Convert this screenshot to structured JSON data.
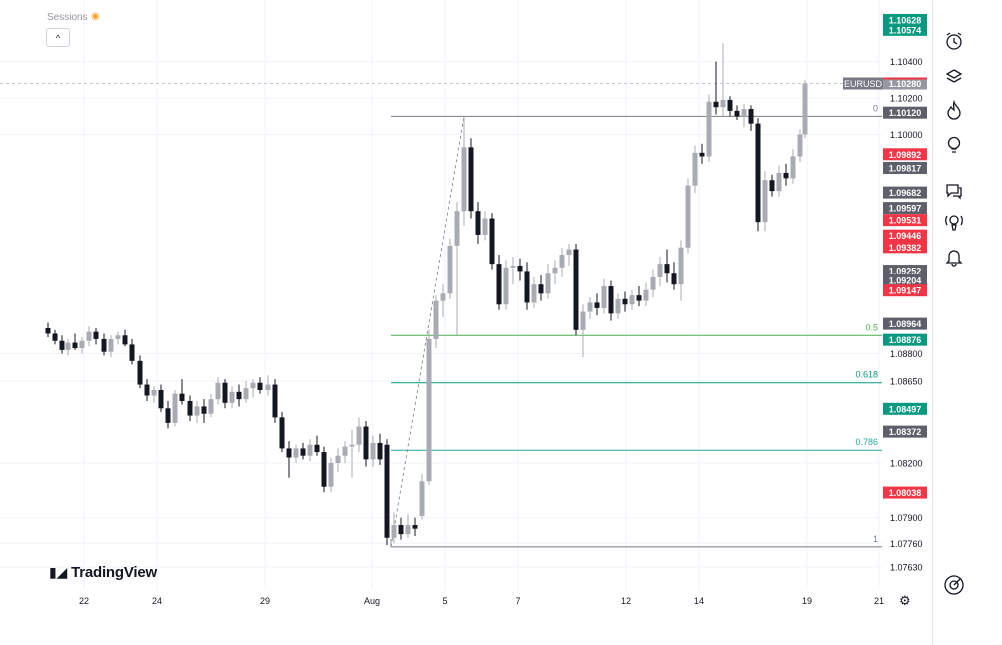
{
  "header": {
    "sessions_label": "Sessions"
  },
  "brand": {
    "name": "TradingView"
  },
  "symbol": {
    "ticker": "EURUSD",
    "price": "1.10280"
  },
  "colors": {
    "up": "#a8abb3",
    "down": "#131722",
    "green": "#089981",
    "red": "#f23645",
    "gray": "#5d606b",
    "fib": "#26a69a"
  },
  "toolbar": {
    "icons": [
      "alarm-clock-icon",
      "layers-icon",
      "hotlist-flame-icon",
      "ideas-bulb-icon",
      "chat-icon",
      "broadcast-icon",
      "bell-icon",
      "target-icon"
    ]
  },
  "chart_data": {
    "type": "candlestick",
    "instrument": "EURUSD",
    "x_ticks": [
      "22",
      "24",
      "29",
      "Aug",
      "5",
      "7",
      "12",
      "14",
      "19",
      "21"
    ],
    "y_ticks": [
      "1.10400",
      "1.10200",
      "1.10000",
      "1.08800",
      "1.08650",
      "1.08200",
      "1.07900",
      "1.07760",
      "1.07630"
    ],
    "ylim": [
      1.075,
      1.108
    ],
    "price_badges": [
      {
        "value": "1.10628",
        "color": "green"
      },
      {
        "value": "1.10574",
        "color": "green"
      },
      {
        "value": "1.10120",
        "color": "gray"
      },
      {
        "value": "1.09892",
        "color": "red"
      },
      {
        "value": "1.09817",
        "color": "gray"
      },
      {
        "value": "1.09682",
        "color": "gray"
      },
      {
        "value": "1.09597",
        "color": "gray"
      },
      {
        "value": "1.09531",
        "color": "red"
      },
      {
        "value": "1.09446",
        "color": "red"
      },
      {
        "value": "1.09382",
        "color": "red"
      },
      {
        "value": "1.09252",
        "color": "gray"
      },
      {
        "value": "1.09204",
        "color": "gray"
      },
      {
        "value": "1.09147",
        "color": "red"
      },
      {
        "value": "1.08964",
        "color": "gray"
      },
      {
        "value": "1.08876",
        "color": "green"
      },
      {
        "value": "1.08497",
        "color": "green"
      },
      {
        "value": "1.08372",
        "color": "gray"
      },
      {
        "value": "1.08038",
        "color": "red"
      }
    ],
    "fib_levels": [
      {
        "label": "0",
        "value": 1.101
      },
      {
        "label": "0.5",
        "value": 1.089
      },
      {
        "label": "0.618",
        "value": 1.0864
      },
      {
        "label": "0.786",
        "value": 1.0827
      },
      {
        "label": "1",
        "value": 1.0774
      }
    ],
    "candles": [
      {
        "x": 48,
        "o": 1.0894,
        "h": 1.0897,
        "l": 1.0889,
        "c": 1.0891
      },
      {
        "x": 55,
        "o": 1.0891,
        "h": 1.0893,
        "l": 1.0885,
        "c": 1.0887
      },
      {
        "x": 62,
        "o": 1.0887,
        "h": 1.089,
        "l": 1.088,
        "c": 1.0882
      },
      {
        "x": 68,
        "o": 1.0882,
        "h": 1.0888,
        "l": 1.0879,
        "c": 1.0886
      },
      {
        "x": 75,
        "o": 1.0886,
        "h": 1.0891,
        "l": 1.0882,
        "c": 1.0883
      },
      {
        "x": 82,
        "o": 1.0883,
        "h": 1.0889,
        "l": 1.088,
        "c": 1.0887
      },
      {
        "x": 89,
        "o": 1.0887,
        "h": 1.0895,
        "l": 1.0884,
        "c": 1.0892
      },
      {
        "x": 96,
        "o": 1.0892,
        "h": 1.0894,
        "l": 1.0885,
        "c": 1.0888
      },
      {
        "x": 104,
        "o": 1.0888,
        "h": 1.0891,
        "l": 1.0879,
        "c": 1.0881
      },
      {
        "x": 111,
        "o": 1.0881,
        "h": 1.089,
        "l": 1.0878,
        "c": 1.0888
      },
      {
        "x": 118,
        "o": 1.0888,
        "h": 1.0892,
        "l": 1.0885,
        "c": 1.089
      },
      {
        "x": 125,
        "o": 1.089,
        "h": 1.0893,
        "l": 1.0884,
        "c": 1.0885
      },
      {
        "x": 132,
        "o": 1.0885,
        "h": 1.0888,
        "l": 1.0874,
        "c": 1.0876
      },
      {
        "x": 140,
        "o": 1.0876,
        "h": 1.0879,
        "l": 1.0861,
        "c": 1.0863
      },
      {
        "x": 147,
        "o": 1.0863,
        "h": 1.0866,
        "l": 1.0854,
        "c": 1.0857
      },
      {
        "x": 154,
        "o": 1.0857,
        "h": 1.0862,
        "l": 1.0853,
        "c": 1.086
      },
      {
        "x": 161,
        "o": 1.086,
        "h": 1.0863,
        "l": 1.0848,
        "c": 1.085
      },
      {
        "x": 168,
        "o": 1.085,
        "h": 1.0854,
        "l": 1.0839,
        "c": 1.0842
      },
      {
        "x": 175,
        "o": 1.0842,
        "h": 1.086,
        "l": 1.084,
        "c": 1.0858
      },
      {
        "x": 182,
        "o": 1.0858,
        "h": 1.0866,
        "l": 1.0852,
        "c": 1.0854
      },
      {
        "x": 190,
        "o": 1.0854,
        "h": 1.0857,
        "l": 1.0843,
        "c": 1.0846
      },
      {
        "x": 197,
        "o": 1.0846,
        "h": 1.0854,
        "l": 1.0842,
        "c": 1.0851
      },
      {
        "x": 204,
        "o": 1.0851,
        "h": 1.0855,
        "l": 1.0842,
        "c": 1.0847
      },
      {
        "x": 211,
        "o": 1.0847,
        "h": 1.0858,
        "l": 1.0845,
        "c": 1.0855
      },
      {
        "x": 218,
        "o": 1.0855,
        "h": 1.0867,
        "l": 1.0852,
        "c": 1.0864
      },
      {
        "x": 225,
        "o": 1.0864,
        "h": 1.0866,
        "l": 1.085,
        "c": 1.0853
      },
      {
        "x": 232,
        "o": 1.0853,
        "h": 1.0862,
        "l": 1.085,
        "c": 1.0859
      },
      {
        "x": 239,
        "o": 1.0859,
        "h": 1.0863,
        "l": 1.0851,
        "c": 1.0855
      },
      {
        "x": 246,
        "o": 1.0855,
        "h": 1.0865,
        "l": 1.0853,
        "c": 1.0861
      },
      {
        "x": 253,
        "o": 1.0861,
        "h": 1.0866,
        "l": 1.0856,
        "c": 1.0864
      },
      {
        "x": 260,
        "o": 1.0864,
        "h": 1.0867,
        "l": 1.0858,
        "c": 1.086
      },
      {
        "x": 268,
        "o": 1.086,
        "h": 1.0868,
        "l": 1.0857,
        "c": 1.0863
      },
      {
        "x": 275,
        "o": 1.0863,
        "h": 1.0866,
        "l": 1.0842,
        "c": 1.0845
      },
      {
        "x": 282,
        "o": 1.0845,
        "h": 1.0848,
        "l": 1.0826,
        "c": 1.0828
      },
      {
        "x": 289,
        "o": 1.0828,
        "h": 1.0832,
        "l": 1.0812,
        "c": 1.0823
      },
      {
        "x": 296,
        "o": 1.0823,
        "h": 1.083,
        "l": 1.082,
        "c": 1.0828
      },
      {
        "x": 303,
        "o": 1.0828,
        "h": 1.0831,
        "l": 1.0822,
        "c": 1.0824
      },
      {
        "x": 310,
        "o": 1.0824,
        "h": 1.0833,
        "l": 1.0821,
        "c": 1.083
      },
      {
        "x": 317,
        "o": 1.083,
        "h": 1.0835,
        "l": 1.0824,
        "c": 1.0826
      },
      {
        "x": 324,
        "o": 1.0826,
        "h": 1.0829,
        "l": 1.0804,
        "c": 1.0807
      },
      {
        "x": 331,
        "o": 1.0807,
        "h": 1.0823,
        "l": 1.0804,
        "c": 1.082
      },
      {
        "x": 338,
        "o": 1.082,
        "h": 1.0828,
        "l": 1.0815,
        "c": 1.0824
      },
      {
        "x": 345,
        "o": 1.0824,
        "h": 1.0832,
        "l": 1.082,
        "c": 1.0829
      },
      {
        "x": 352,
        "o": 1.0829,
        "h": 1.0838,
        "l": 1.0812,
        "c": 1.083
      },
      {
        "x": 359,
        "o": 1.083,
        "h": 1.0845,
        "l": 1.0826,
        "c": 1.084
      },
      {
        "x": 366,
        "o": 1.084,
        "h": 1.0843,
        "l": 1.0818,
        "c": 1.0822
      },
      {
        "x": 373,
        "o": 1.0822,
        "h": 1.0835,
        "l": 1.0818,
        "c": 1.0831
      },
      {
        "x": 380,
        "o": 1.0831,
        "h": 1.0836,
        "l": 1.0819,
        "c": 1.0822
      },
      {
        "x": 387,
        "o": 1.083,
        "h": 1.0833,
        "l": 1.0775,
        "c": 1.0779
      },
      {
        "x": 394,
        "o": 1.0779,
        "h": 1.0793,
        "l": 1.0776,
        "c": 1.0786
      },
      {
        "x": 401,
        "o": 1.0786,
        "h": 1.079,
        "l": 1.0778,
        "c": 1.0781
      },
      {
        "x": 408,
        "o": 1.0781,
        "h": 1.0792,
        "l": 1.0779,
        "c": 1.0786
      },
      {
        "x": 415,
        "o": 1.0786,
        "h": 1.079,
        "l": 1.078,
        "c": 1.0784
      },
      {
        "x": 422,
        "o": 1.0791,
        "h": 1.0814,
        "l": 1.0789,
        "c": 1.081
      },
      {
        "x": 429,
        "o": 1.081,
        "h": 1.0893,
        "l": 1.0808,
        "c": 1.0888
      },
      {
        "x": 436,
        "o": 1.0888,
        "h": 1.0912,
        "l": 1.0883,
        "c": 1.0909
      },
      {
        "x": 443,
        "o": 1.0909,
        "h": 1.0918,
        "l": 1.09,
        "c": 1.0913
      },
      {
        "x": 450,
        "o": 1.0913,
        "h": 1.0943,
        "l": 1.091,
        "c": 1.0939
      },
      {
        "x": 457,
        "o": 1.0939,
        "h": 1.0963,
        "l": 1.089,
        "c": 1.0958
      },
      {
        "x": 464,
        "o": 1.0958,
        "h": 1.101,
        "l": 1.095,
        "c": 1.0993
      },
      {
        "x": 471,
        "o": 1.0993,
        "h": 1.0998,
        "l": 1.0954,
        "c": 1.0958
      },
      {
        "x": 478,
        "o": 1.0958,
        "h": 1.0963,
        "l": 1.094,
        "c": 1.0945
      },
      {
        "x": 485,
        "o": 1.0945,
        "h": 1.0958,
        "l": 1.0942,
        "c": 1.0954
      },
      {
        "x": 492,
        "o": 1.0954,
        "h": 1.0957,
        "l": 1.0926,
        "c": 1.0929
      },
      {
        "x": 499,
        "o": 1.0929,
        "h": 1.0934,
        "l": 1.0904,
        "c": 1.0907
      },
      {
        "x": 506,
        "o": 1.0907,
        "h": 1.0931,
        "l": 1.0904,
        "c": 1.0927
      },
      {
        "x": 513,
        "o": 1.0927,
        "h": 1.0933,
        "l": 1.0918,
        "c": 1.0928
      },
      {
        "x": 520,
        "o": 1.0928,
        "h": 1.0932,
        "l": 1.092,
        "c": 1.0925
      },
      {
        "x": 527,
        "o": 1.0925,
        "h": 1.093,
        "l": 1.0904,
        "c": 1.0908
      },
      {
        "x": 534,
        "o": 1.0908,
        "h": 1.0922,
        "l": 1.0905,
        "c": 1.0918
      },
      {
        "x": 541,
        "o": 1.0918,
        "h": 1.0923,
        "l": 1.0909,
        "c": 1.0913
      },
      {
        "x": 548,
        "o": 1.0913,
        "h": 1.0929,
        "l": 1.091,
        "c": 1.0924
      },
      {
        "x": 555,
        "o": 1.0924,
        "h": 1.0931,
        "l": 1.0918,
        "c": 1.0927
      },
      {
        "x": 562,
        "o": 1.0927,
        "h": 1.0938,
        "l": 1.0922,
        "c": 1.0934
      },
      {
        "x": 569,
        "o": 1.0934,
        "h": 1.094,
        "l": 1.0928,
        "c": 1.0937
      },
      {
        "x": 576,
        "o": 1.0937,
        "h": 1.094,
        "l": 1.089,
        "c": 1.0893
      },
      {
        "x": 583,
        "o": 1.0893,
        "h": 1.0907,
        "l": 1.0878,
        "c": 1.0903
      },
      {
        "x": 590,
        "o": 1.0903,
        "h": 1.0911,
        "l": 1.0899,
        "c": 1.0908
      },
      {
        "x": 597,
        "o": 1.0908,
        "h": 1.0913,
        "l": 1.0901,
        "c": 1.0905
      },
      {
        "x": 604,
        "o": 1.0905,
        "h": 1.0921,
        "l": 1.0902,
        "c": 1.0917
      },
      {
        "x": 611,
        "o": 1.0917,
        "h": 1.092,
        "l": 1.0898,
        "c": 1.0902
      },
      {
        "x": 618,
        "o": 1.0902,
        "h": 1.0913,
        "l": 1.0899,
        "c": 1.091
      },
      {
        "x": 625,
        "o": 1.091,
        "h": 1.0914,
        "l": 1.0903,
        "c": 1.0907
      },
      {
        "x": 632,
        "o": 1.0907,
        "h": 1.0915,
        "l": 1.0904,
        "c": 1.0912
      },
      {
        "x": 639,
        "o": 1.0912,
        "h": 1.0917,
        "l": 1.0906,
        "c": 1.0909
      },
      {
        "x": 646,
        "o": 1.0909,
        "h": 1.0919,
        "l": 1.0906,
        "c": 1.0915
      },
      {
        "x": 653,
        "o": 1.0915,
        "h": 1.0926,
        "l": 1.0911,
        "c": 1.0922
      },
      {
        "x": 660,
        "o": 1.0922,
        "h": 1.0933,
        "l": 1.0917,
        "c": 1.0929
      },
      {
        "x": 667,
        "o": 1.0929,
        "h": 1.0937,
        "l": 1.0919,
        "c": 1.0924
      },
      {
        "x": 674,
        "o": 1.0924,
        "h": 1.093,
        "l": 1.0915,
        "c": 1.0918
      },
      {
        "x": 681,
        "o": 1.0918,
        "h": 1.0942,
        "l": 1.0909,
        "c": 1.0938
      },
      {
        "x": 688,
        "o": 1.0938,
        "h": 1.0976,
        "l": 1.0935,
        "c": 1.0972
      },
      {
        "x": 695,
        "o": 1.0972,
        "h": 1.0994,
        "l": 1.0968,
        "c": 1.099
      },
      {
        "x": 702,
        "o": 1.099,
        "h": 1.0995,
        "l": 1.0984,
        "c": 1.0988
      },
      {
        "x": 709,
        "o": 1.0988,
        "h": 1.1022,
        "l": 1.0985,
        "c": 1.1018
      },
      {
        "x": 716,
        "o": 1.1018,
        "h": 1.104,
        "l": 1.1011,
        "c": 1.1015
      },
      {
        "x": 723,
        "o": 1.1015,
        "h": 1.105,
        "l": 1.101,
        "c": 1.1019
      },
      {
        "x": 730,
        "o": 1.1019,
        "h": 1.1021,
        "l": 1.101,
        "c": 1.1013
      },
      {
        "x": 737,
        "o": 1.1013,
        "h": 1.1016,
        "l": 1.1008,
        "c": 1.101
      },
      {
        "x": 744,
        "o": 1.101,
        "h": 1.1017,
        "l": 1.1004,
        "c": 1.1014
      },
      {
        "x": 751,
        "o": 1.1014,
        "h": 1.1016,
        "l": 1.1002,
        "c": 1.1006
      },
      {
        "x": 758,
        "o": 1.1006,
        "h": 1.1009,
        "l": 1.0947,
        "c": 1.0952
      },
      {
        "x": 765,
        "o": 1.0952,
        "h": 1.098,
        "l": 1.0947,
        "c": 1.0975
      },
      {
        "x": 772,
        "o": 1.0975,
        "h": 1.0978,
        "l": 1.0966,
        "c": 1.0969
      },
      {
        "x": 779,
        "o": 1.0969,
        "h": 1.0983,
        "l": 1.0966,
        "c": 1.0979
      },
      {
        "x": 786,
        "o": 1.0979,
        "h": 1.0984,
        "l": 1.0972,
        "c": 1.0976
      },
      {
        "x": 793,
        "o": 1.0976,
        "h": 1.0992,
        "l": 1.0973,
        "c": 1.0988
      },
      {
        "x": 800,
        "o": 1.0988,
        "h": 1.1003,
        "l": 1.0985,
        "c": 1.1
      },
      {
        "x": 805,
        "o": 1.1,
        "h": 1.103,
        "l": 1.0998,
        "c": 1.1028
      }
    ]
  }
}
